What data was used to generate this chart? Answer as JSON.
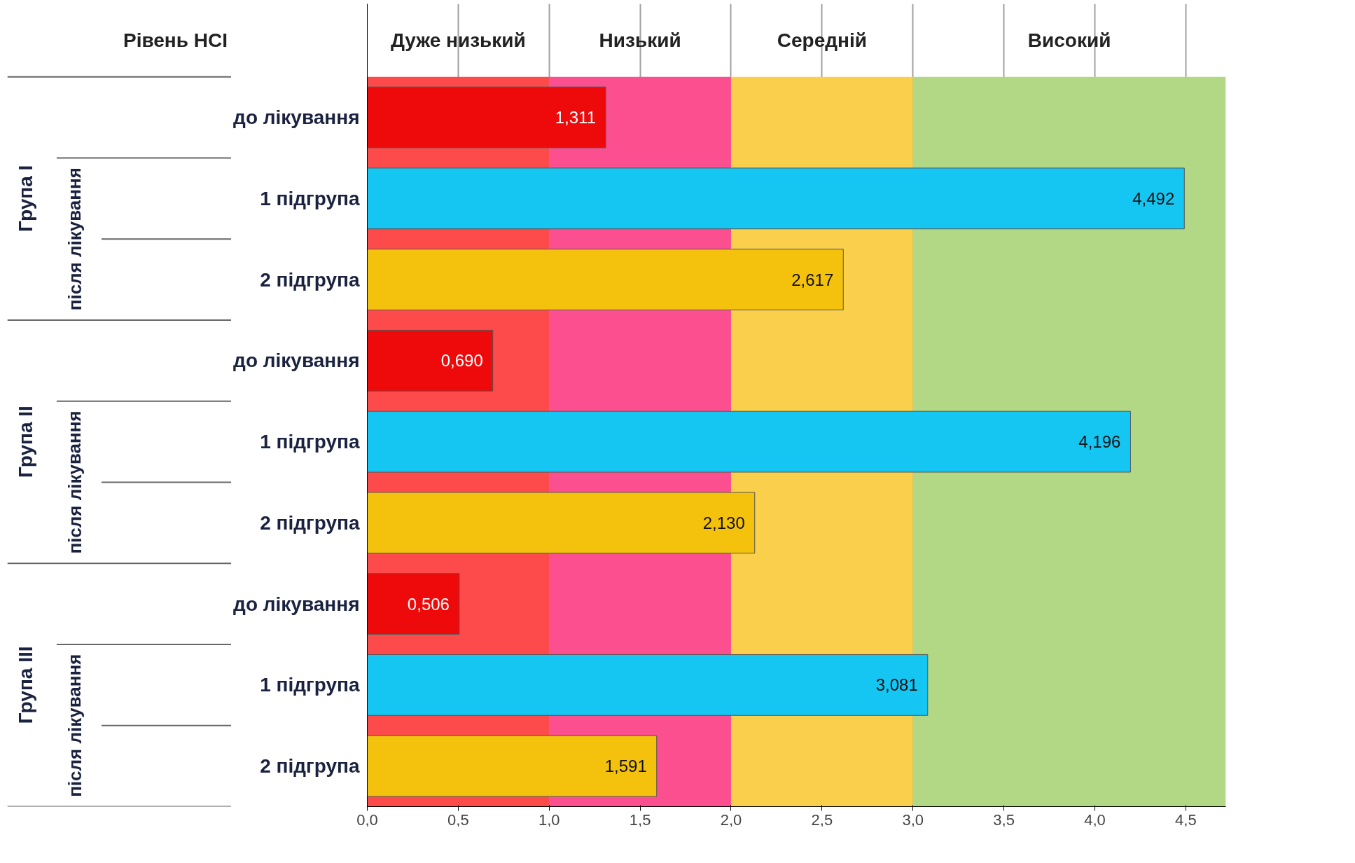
{
  "chart_data": {
    "type": "bar",
    "orientation": "horizontal",
    "categories": [
      "до лікування",
      "1 підгрупа",
      "2 підгрупа",
      "до лікування",
      "1 підгрупа",
      "2 підгрупа",
      "до лікування",
      "1 підгрупа",
      "2 підгрупа"
    ],
    "values": [
      1.311,
      4.492,
      2.617,
      0.69,
      4.196,
      2.13,
      0.506,
      3.081,
      1.591
    ],
    "value_labels": [
      "1,311",
      "4,492",
      "2,617",
      "0,690",
      "4,196",
      "2,130",
      "0,506",
      "3,081",
      "1,591"
    ],
    "colors": [
      "#ee0a0a",
      "#16c6f2",
      "#f4c20d",
      "#ee0a0a",
      "#16c6f2",
      "#f4c20d",
      "#ee0a0a",
      "#16c6f2",
      "#f4c20d"
    ],
    "xlim": [
      0,
      4.72
    ],
    "xticks": [
      {
        "value": 0,
        "label": "0,0"
      },
      {
        "value": 0.5,
        "label": "0,5"
      },
      {
        "value": 1,
        "label": "1,0"
      },
      {
        "value": 1.5,
        "label": "1,5"
      },
      {
        "value": 2,
        "label": "2,0"
      },
      {
        "value": 2.5,
        "label": "2,5"
      },
      {
        "value": 3,
        "label": "3,0"
      },
      {
        "value": 3.5,
        "label": "3,5"
      },
      {
        "value": 4,
        "label": "4,0"
      },
      {
        "value": 4.5,
        "label": "4,5"
      }
    ],
    "grid": "x",
    "bands": [
      {
        "axis": "x",
        "from": 0,
        "to": 1,
        "label": "Дуже низький",
        "color": "#fd4b4b"
      },
      {
        "axis": "x",
        "from": 1,
        "to": 2,
        "label": "Низький",
        "color": "#fc4f8f"
      },
      {
        "axis": "x",
        "from": 2,
        "to": 3,
        "label": "Середній",
        "color": "#f9cf4b"
      },
      {
        "axis": "x",
        "from": 3,
        "to": 4.72,
        "label": "Високий",
        "color": "#b2d885"
      }
    ],
    "annotations": [
      "Рівень НСІ",
      "Група I",
      "після лікування",
      "Група II",
      "після лікування",
      "Група III",
      "після лікування"
    ]
  }
}
